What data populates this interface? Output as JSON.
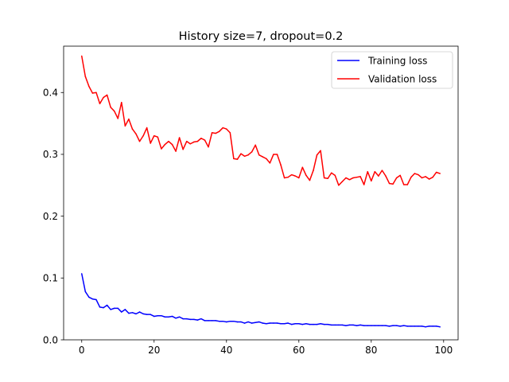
{
  "chart_data": {
    "type": "line",
    "title": "History size=7, dropout=0.2",
    "xlabel": "",
    "ylabel": "",
    "xlim": [
      -5,
      104
    ],
    "ylim": [
      0,
      0.475
    ],
    "xticks": [
      0,
      20,
      40,
      60,
      80,
      100
    ],
    "yticks": [
      0.0,
      0.1,
      0.2,
      0.3,
      0.4
    ],
    "xtick_labels": [
      "0",
      "20",
      "40",
      "60",
      "80",
      "100"
    ],
    "ytick_labels": [
      "0.0",
      "0.1",
      "0.2",
      "0.3",
      "0.4"
    ],
    "grid": false,
    "legend": "top-right",
    "x": [
      0,
      1,
      2,
      3,
      4,
      5,
      6,
      7,
      8,
      9,
      10,
      11,
      12,
      13,
      14,
      15,
      16,
      17,
      18,
      19,
      20,
      21,
      22,
      23,
      24,
      25,
      26,
      27,
      28,
      29,
      30,
      31,
      32,
      33,
      34,
      35,
      36,
      37,
      38,
      39,
      40,
      41,
      42,
      43,
      44,
      45,
      46,
      47,
      48,
      49,
      50,
      51,
      52,
      53,
      54,
      55,
      56,
      57,
      58,
      59,
      60,
      61,
      62,
      63,
      64,
      65,
      66,
      67,
      68,
      69,
      70,
      71,
      72,
      73,
      74,
      75,
      76,
      77,
      78,
      79,
      80,
      81,
      82,
      83,
      84,
      85,
      86,
      87,
      88,
      89,
      90,
      91,
      92,
      93,
      94,
      95,
      96,
      97,
      98,
      99
    ],
    "series": [
      {
        "name": "Training loss",
        "color": "#0000ff",
        "values": [
          0.107,
          0.078,
          0.069,
          0.066,
          0.065,
          0.053,
          0.052,
          0.056,
          0.049,
          0.051,
          0.051,
          0.045,
          0.049,
          0.043,
          0.044,
          0.042,
          0.045,
          0.042,
          0.041,
          0.041,
          0.038,
          0.039,
          0.039,
          0.037,
          0.037,
          0.038,
          0.035,
          0.037,
          0.034,
          0.034,
          0.033,
          0.033,
          0.032,
          0.034,
          0.031,
          0.031,
          0.031,
          0.031,
          0.03,
          0.03,
          0.029,
          0.03,
          0.03,
          0.029,
          0.029,
          0.027,
          0.029,
          0.027,
          0.028,
          0.029,
          0.027,
          0.026,
          0.027,
          0.027,
          0.027,
          0.026,
          0.026,
          0.027,
          0.025,
          0.026,
          0.026,
          0.025,
          0.026,
          0.025,
          0.025,
          0.025,
          0.026,
          0.025,
          0.025,
          0.024,
          0.024,
          0.024,
          0.024,
          0.023,
          0.024,
          0.024,
          0.023,
          0.024,
          0.023,
          0.023,
          0.023,
          0.023,
          0.023,
          0.023,
          0.023,
          0.022,
          0.023,
          0.023,
          0.022,
          0.023,
          0.022,
          0.022,
          0.022,
          0.022,
          0.022,
          0.021,
          0.022,
          0.022,
          0.022,
          0.021
        ]
      },
      {
        "name": "Validation loss",
        "color": "#ff0000",
        "values": [
          0.459,
          0.426,
          0.41,
          0.399,
          0.4,
          0.382,
          0.392,
          0.396,
          0.376,
          0.37,
          0.358,
          0.384,
          0.346,
          0.357,
          0.341,
          0.333,
          0.321,
          0.33,
          0.343,
          0.318,
          0.33,
          0.328,
          0.309,
          0.316,
          0.321,
          0.316,
          0.305,
          0.327,
          0.308,
          0.321,
          0.317,
          0.32,
          0.321,
          0.326,
          0.323,
          0.312,
          0.335,
          0.334,
          0.337,
          0.343,
          0.341,
          0.335,
          0.293,
          0.292,
          0.301,
          0.297,
          0.299,
          0.304,
          0.315,
          0.299,
          0.296,
          0.293,
          0.286,
          0.3,
          0.3,
          0.283,
          0.262,
          0.263,
          0.267,
          0.265,
          0.262,
          0.279,
          0.266,
          0.258,
          0.274,
          0.299,
          0.306,
          0.262,
          0.261,
          0.27,
          0.266,
          0.25,
          0.256,
          0.262,
          0.259,
          0.262,
          0.263,
          0.264,
          0.251,
          0.272,
          0.257,
          0.272,
          0.265,
          0.274,
          0.265,
          0.253,
          0.252,
          0.262,
          0.266,
          0.251,
          0.251,
          0.263,
          0.269,
          0.267,
          0.262,
          0.264,
          0.26,
          0.263,
          0.271,
          0.269
        ]
      }
    ]
  }
}
